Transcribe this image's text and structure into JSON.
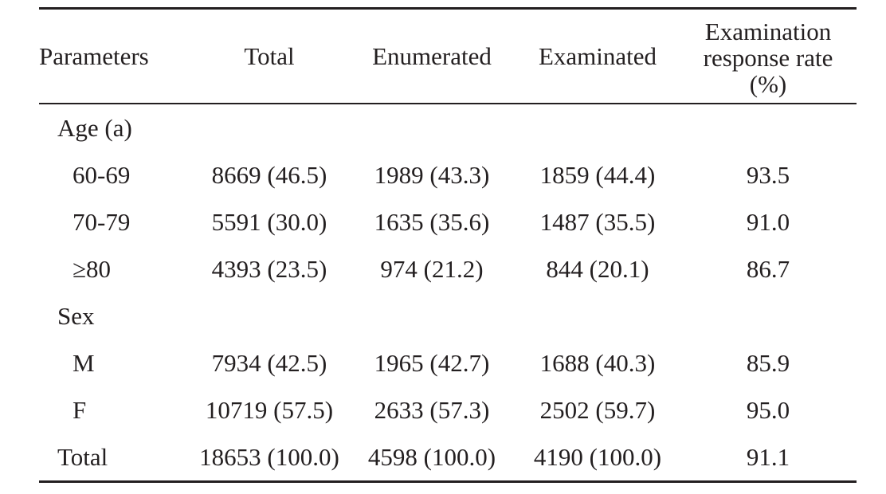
{
  "table": {
    "headers": {
      "parameters": "Parameters",
      "total": "Total",
      "enumerated": "Enumerated",
      "examinated": "Examinated",
      "rate_line1": "Examination",
      "rate_line2": "response rate",
      "rate_line3": "(%)"
    },
    "groups": {
      "age": {
        "label": "Age (a)",
        "rows": [
          {
            "label": "60-69",
            "total": "8669 (46.5)",
            "enumerated": "1989 (43.3)",
            "examinated": "1859 (44.4)",
            "rate": "93.5"
          },
          {
            "label": "70-79",
            "total": "5591 (30.0)",
            "enumerated": "1635 (35.6)",
            "examinated": "1487 (35.5)",
            "rate": "91.0"
          },
          {
            "label": "≥80",
            "total": "4393 (23.5)",
            "enumerated": "974 (21.2)",
            "examinated": "844 (20.1)",
            "rate": "86.7"
          }
        ]
      },
      "sex": {
        "label": "Sex",
        "rows": [
          {
            "label": "M",
            "total": "7934 (42.5)",
            "enumerated": "1965 (42.7)",
            "examinated": "1688 (40.3)",
            "rate": "85.9"
          },
          {
            "label": "F",
            "total": "10719 (57.5)",
            "enumerated": "2633 (57.3)",
            "examinated": "2502 (59.7)",
            "rate": "95.0"
          }
        ]
      }
    },
    "total_row": {
      "label": "Total",
      "total": "18653 (100.0)",
      "enumerated": "4598 (100.0)",
      "examinated": "4190 (100.0)",
      "rate": "91.1"
    }
  }
}
